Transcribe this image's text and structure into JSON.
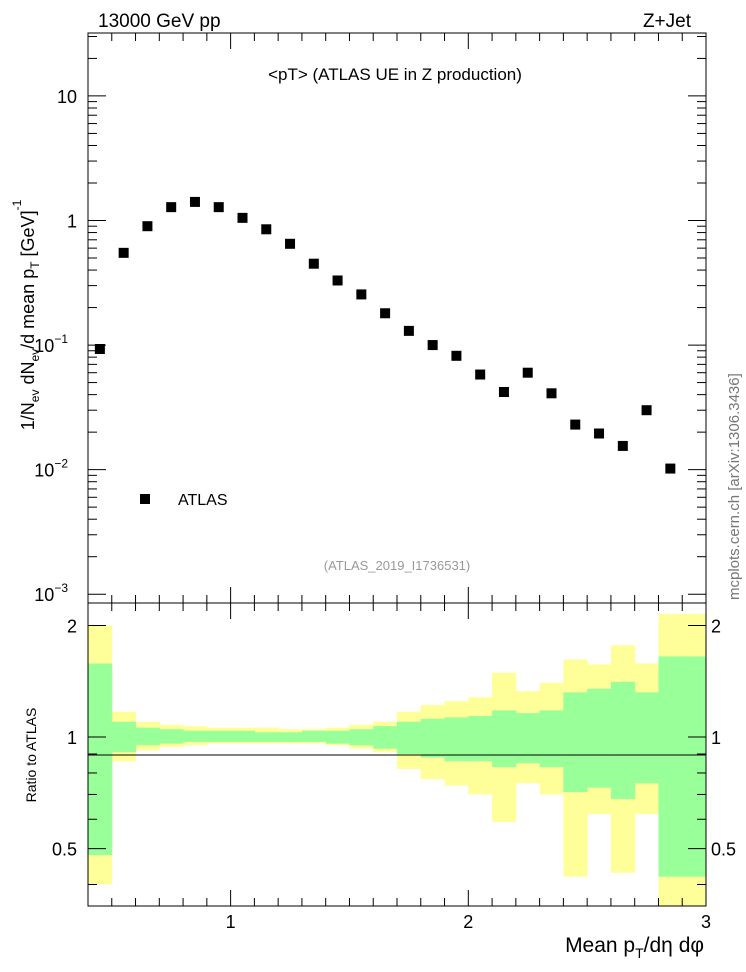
{
  "header": {
    "left": "13000 GeV pp",
    "right": "Z+Jet"
  },
  "side_label": "mcplots.cern.ch [arXiv:1306.3436]",
  "chart_data": [
    {
      "type": "scatter",
      "title": "<pT>  (ATLAS UE in Z production)",
      "ylabel_parts": [
        "1/N",
        "ev",
        " dN",
        "ev",
        "/d mean p",
        "T",
        " [GeV]",
        "-1"
      ],
      "yscale": "log",
      "ylim": [
        0.00085,
        32
      ],
      "xlim": [
        0.4,
        3.0
      ],
      "grid": false,
      "legend": {
        "position": "bottom-left",
        "entries": [
          "ATLAS"
        ]
      },
      "watermark": "(ATLAS_2019_I1736531)",
      "y_ticks": [
        {
          "value": 10,
          "base": "10",
          "exp": ""
        },
        {
          "value": 1,
          "base": "1",
          "exp": ""
        },
        {
          "value": 0.1,
          "base": "10",
          "exp": "−1"
        },
        {
          "value": 0.01,
          "base": "10",
          "exp": "−2"
        },
        {
          "value": 0.001,
          "base": "10",
          "exp": "−3"
        }
      ],
      "series": [
        {
          "name": "ATLAS",
          "color": "#000000",
          "x": [
            0.45,
            0.55,
            0.65,
            0.75,
            0.85,
            0.95,
            1.05,
            1.15,
            1.25,
            1.35,
            1.45,
            1.55,
            1.65,
            1.75,
            1.85,
            1.95,
            2.05,
            2.15,
            2.25,
            2.35,
            2.45,
            2.55,
            2.65,
            2.75,
            2.85
          ],
          "y": [
            0.093,
            0.55,
            0.9,
            1.28,
            1.41,
            1.28,
            1.05,
            0.85,
            0.65,
            0.45,
            0.33,
            0.255,
            0.18,
            0.13,
            0.1,
            0.082,
            0.058,
            0.042,
            0.06,
            0.041,
            0.023,
            0.0195,
            0.0155,
            0.03,
            0.0102
          ]
        }
      ]
    },
    {
      "type": "area",
      "ylabel": "Ratio to ATLAS",
      "xlabel_parts": [
        "Mean p",
        "T",
        "/dη dφ"
      ],
      "xlim": [
        0.4,
        3.0
      ],
      "ylim": [
        0.35,
        2.3
      ],
      "x_ticks": [
        1,
        2,
        3
      ],
      "y_ticks": [
        "0.5",
        "1",
        "2"
      ],
      "reference_line": 1,
      "colors": {
        "outer_band": "#ffff99",
        "inner_band": "#99ff99"
      },
      "bins": {
        "edges": [
          0.4,
          0.5,
          0.6,
          0.7,
          0.8,
          0.9,
          1.0,
          1.1,
          1.2,
          1.3,
          1.4,
          1.5,
          1.6,
          1.7,
          1.8,
          1.9,
          2.0,
          2.1,
          2.2,
          2.3,
          2.4,
          2.5,
          2.6,
          2.7,
          2.8,
          2.9,
          3.0
        ],
        "outer_lo": [
          0.4,
          0.86,
          0.92,
          0.94,
          0.95,
          0.96,
          0.96,
          0.96,
          0.96,
          0.96,
          0.95,
          0.93,
          0.91,
          0.82,
          0.77,
          0.74,
          0.7,
          0.59,
          0.75,
          0.7,
          0.42,
          0.62,
          0.43,
          0.62,
          0.31,
          0.31
        ],
        "outer_hi": [
          2.0,
          1.17,
          1.1,
          1.08,
          1.07,
          1.06,
          1.06,
          1.06,
          1.05,
          1.05,
          1.06,
          1.08,
          1.1,
          1.17,
          1.22,
          1.25,
          1.28,
          1.49,
          1.33,
          1.4,
          1.62,
          1.57,
          1.77,
          1.58,
          2.15,
          2.15
        ],
        "inner_lo": [
          0.48,
          0.91,
          0.95,
          0.96,
          0.97,
          0.97,
          0.97,
          0.97,
          0.97,
          0.97,
          0.96,
          0.95,
          0.93,
          0.9,
          0.88,
          0.86,
          0.86,
          0.83,
          0.85,
          0.83,
          0.71,
          0.73,
          0.68,
          0.75,
          0.42,
          0.42
        ],
        "inner_hi": [
          1.58,
          1.1,
          1.06,
          1.05,
          1.04,
          1.04,
          1.04,
          1.03,
          1.03,
          1.04,
          1.04,
          1.05,
          1.07,
          1.1,
          1.12,
          1.13,
          1.14,
          1.18,
          1.16,
          1.18,
          1.32,
          1.35,
          1.41,
          1.32,
          1.65,
          1.65
        ]
      }
    }
  ]
}
